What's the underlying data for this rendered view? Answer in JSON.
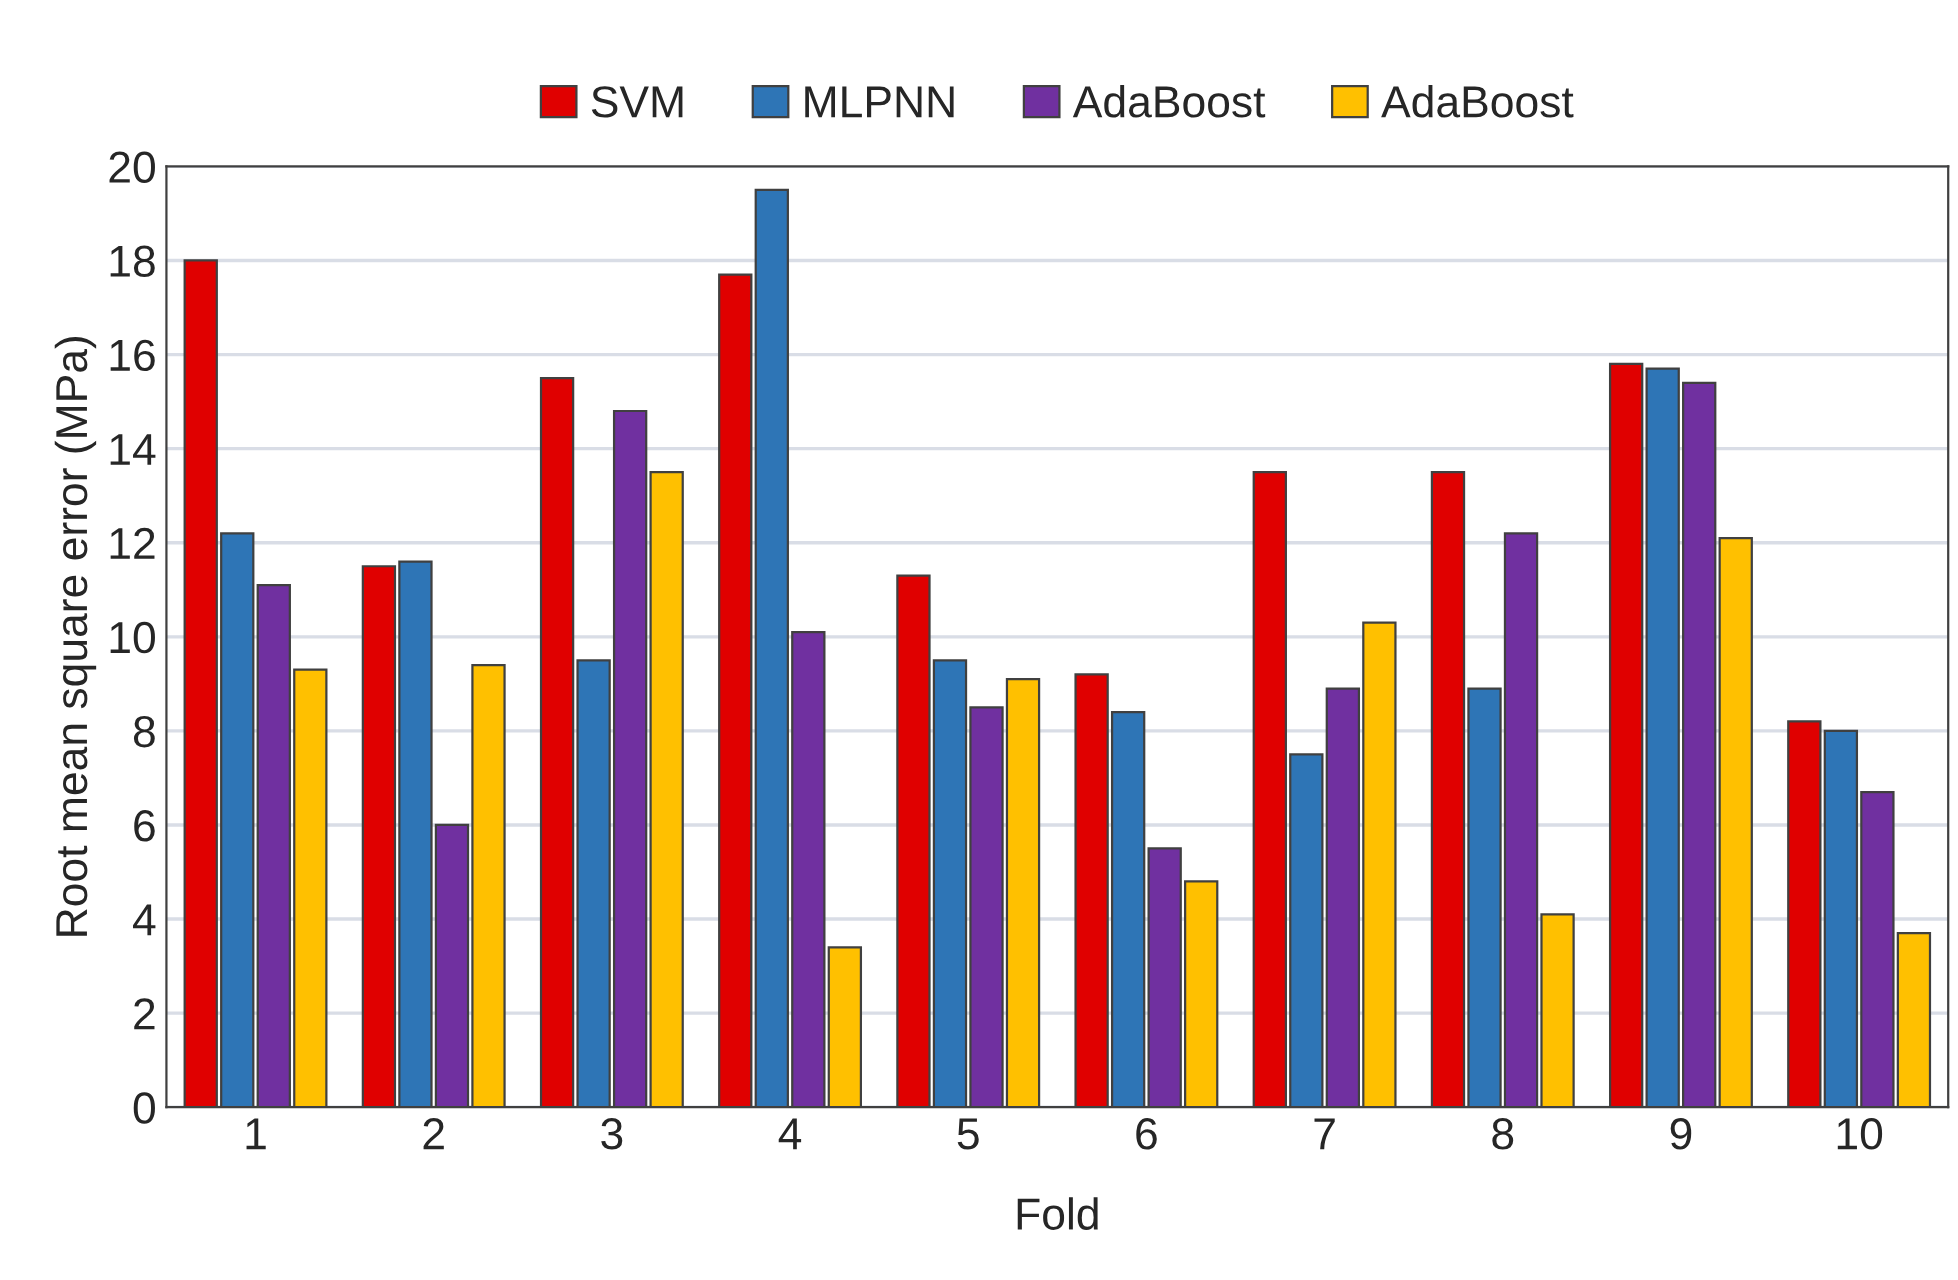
{
  "chart_data": {
    "type": "bar",
    "xlabel": "Fold",
    "ylabel": "Root mean square error (MPa)",
    "categories": [
      "1",
      "2",
      "3",
      "4",
      "5",
      "6",
      "7",
      "8",
      "9",
      "10"
    ],
    "series": [
      {
        "name": "SVM",
        "color": "#e00000",
        "values": [
          18.0,
          11.5,
          15.5,
          17.7,
          11.3,
          9.2,
          13.5,
          13.5,
          15.8,
          8.2
        ]
      },
      {
        "name": "MLPNN",
        "color": "#2e75b6",
        "values": [
          12.2,
          11.6,
          9.5,
          19.5,
          9.5,
          8.4,
          7.5,
          8.9,
          15.7,
          8.0
        ]
      },
      {
        "name": "AdaBoost",
        "color": "#7030a0",
        "values": [
          11.1,
          6.0,
          14.8,
          10.1,
          8.5,
          5.5,
          8.9,
          12.2,
          15.4,
          6.7
        ]
      },
      {
        "name": "AdaBoost",
        "color": "#ffc000",
        "values": [
          9.3,
          9.4,
          13.5,
          3.4,
          9.1,
          4.8,
          10.3,
          4.1,
          12.1,
          3.7
        ]
      }
    ],
    "ylim": [
      0,
      20
    ],
    "yticks": [
      0,
      2,
      4,
      6,
      8,
      10,
      12,
      14,
      16,
      18,
      20
    ],
    "grid": "y",
    "legend": "top"
  }
}
